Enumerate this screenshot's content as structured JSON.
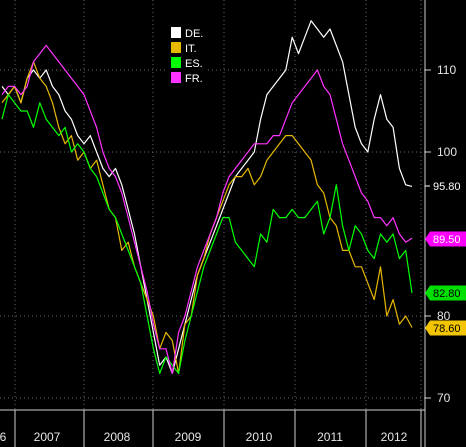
{
  "chart_data": {
    "type": "line",
    "title": "",
    "xlabel": "",
    "ylabel": "",
    "ylim": [
      69,
      118
    ],
    "y_ticks": [
      70,
      80,
      100,
      110
    ],
    "x_tick_labels": [
      "6",
      "2007",
      "2008",
      "2009",
      "2010",
      "2011",
      "2012"
    ],
    "legend_position": "top-center",
    "grid": true,
    "background": "#000000",
    "x_start": "2006-10",
    "series": [
      {
        "name": "DE.",
        "color": "#ffffff",
        "end_label": "95.80",
        "label_bg": "#000000",
        "label_fg": "#ffffff",
        "values": [
          108,
          107,
          108,
          106,
          109,
          110,
          109,
          110,
          108,
          107,
          105,
          104,
          102,
          101,
          102,
          100,
          98,
          97,
          98,
          96,
          93,
          90,
          86,
          82,
          78,
          74,
          75,
          73,
          76,
          79,
          82,
          85,
          87,
          89,
          91,
          93,
          95,
          97,
          98,
          99,
          100,
          104,
          107,
          108,
          109,
          110,
          114,
          112,
          114,
          116,
          115,
          114,
          115,
          113,
          111,
          107,
          103,
          101,
          100,
          104,
          107,
          104,
          103,
          98,
          96,
          95.8
        ]
      },
      {
        "name": "IT.",
        "color": "#e6b800",
        "end_label": "78.60",
        "label_bg": "#f2c500",
        "label_fg": "#000000",
        "values": [
          106,
          107,
          108,
          106,
          109,
          111,
          109,
          108,
          106,
          103,
          101,
          102,
          99,
          100,
          98,
          99,
          96,
          93,
          92,
          88,
          89,
          86,
          84,
          82,
          80,
          76,
          78,
          77,
          73,
          79,
          80,
          85,
          87,
          90,
          92,
          94,
          96,
          97,
          97,
          98,
          96,
          97,
          99,
          100,
          101,
          102,
          102,
          101,
          100,
          99,
          96,
          95,
          92,
          91,
          88,
          88,
          86,
          86,
          84,
          82,
          86,
          80,
          82,
          79,
          80,
          78.6
        ]
      },
      {
        "name": "ES.",
        "color": "#00ff00",
        "end_label": "82.80",
        "label_bg": "#00e000",
        "label_fg": "#000000",
        "values": [
          104,
          107,
          106,
          105,
          105,
          103,
          106,
          104,
          103,
          102,
          103,
          100,
          101,
          100,
          98,
          97,
          95,
          93,
          92,
          90,
          88,
          86,
          84,
          80,
          76,
          73,
          75,
          74,
          73,
          77,
          80,
          83,
          86,
          88,
          90,
          92,
          92,
          89,
          88,
          87,
          86,
          90,
          89,
          93,
          92,
          92,
          93,
          92,
          92,
          93,
          94,
          90,
          92,
          96,
          91,
          88,
          91,
          90,
          88,
          87,
          90,
          89,
          90,
          87,
          88,
          82.8
        ]
      },
      {
        "name": "FR.",
        "color": "#ff33ff",
        "end_label": "89.50",
        "label_bg": "#ff00ff",
        "label_fg": "#ffffff",
        "values": [
          107,
          108,
          108,
          107,
          108,
          111,
          112,
          113,
          112,
          111,
          110,
          109,
          108,
          107,
          105,
          103,
          100,
          98,
          97,
          95,
          92,
          89,
          86,
          83,
          79,
          76,
          76,
          73,
          78,
          80,
          83,
          86,
          88,
          90,
          92,
          95,
          97,
          98,
          99,
          100,
          101,
          101,
          101,
          102,
          102,
          104,
          106,
          107,
          108,
          109,
          110,
          108,
          107,
          104,
          101,
          99,
          97,
          95,
          94,
          92,
          92,
          91,
          92,
          90,
          89,
          89.5
        ]
      }
    ]
  }
}
